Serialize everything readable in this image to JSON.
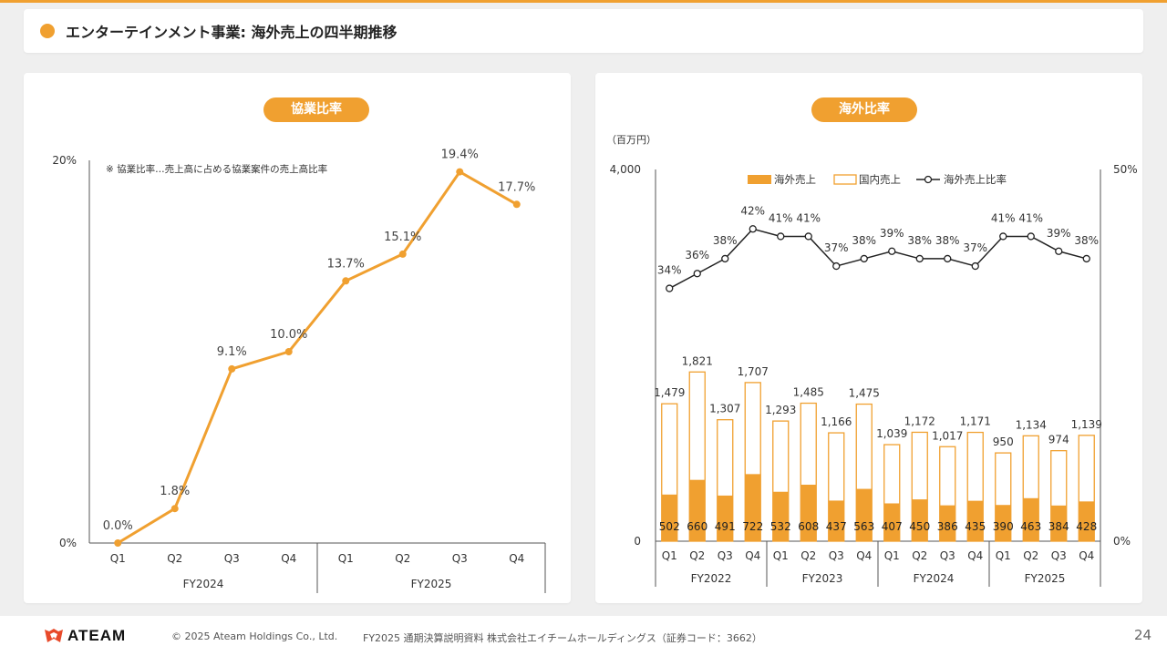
{
  "header": {
    "title": "エンターテインメント事業: 海外売上の四半期推移"
  },
  "left_panel": {
    "pill": "協業比率",
    "note": "※ 協業比率…売上高に占める協業案件の売上高比率"
  },
  "right_panel": {
    "pill": "海外比率",
    "unit": "（百万円）",
    "legend": {
      "overseas": "海外売上",
      "domestic": "国内売上",
      "ratio": "海外売上比率"
    }
  },
  "footer": {
    "logo": "ATEAM",
    "copyright": "© 2025 Ateam Holdings Co., Ltd.",
    "document": "FY2025 通期決算説明資料 株式会社エイチームホールディングス（証券コード：3662）",
    "page": "24"
  },
  "colors": {
    "accent": "#f0a030",
    "line": "#222222"
  },
  "chart_data": [
    {
      "type": "line",
      "title": "協業比率",
      "categories": [
        "Q1",
        "Q2",
        "Q3",
        "Q4",
        "Q1",
        "Q2",
        "Q3",
        "Q4"
      ],
      "groups": [
        {
          "name": "FY2024",
          "span": 4
        },
        {
          "name": "FY2025",
          "span": 4
        }
      ],
      "values": [
        0.0,
        1.8,
        9.1,
        10.0,
        13.7,
        15.1,
        19.4,
        17.7
      ],
      "labels": [
        "0.0%",
        "1.8%",
        "9.1%",
        "10.0%",
        "13.7%",
        "15.1%",
        "19.4%",
        "17.7%"
      ],
      "y_ticks": [
        "0%",
        "20%"
      ],
      "ylim": [
        0,
        20
      ],
      "grid": false
    },
    {
      "type": "bar",
      "stacked": true,
      "title": "海外比率",
      "categories": [
        "Q1",
        "Q2",
        "Q3",
        "Q4",
        "Q1",
        "Q2",
        "Q3",
        "Q4",
        "Q1",
        "Q2",
        "Q3",
        "Q4",
        "Q1",
        "Q2",
        "Q3",
        "Q4"
      ],
      "groups": [
        {
          "name": "FY2022",
          "span": 4
        },
        {
          "name": "FY2023",
          "span": 4
        },
        {
          "name": "FY2024",
          "span": 4
        },
        {
          "name": "FY2025",
          "span": 4
        }
      ],
      "overseas": [
        502,
        660,
        491,
        722,
        532,
        608,
        437,
        563,
        407,
        450,
        386,
        435,
        390,
        463,
        384,
        428
      ],
      "totals": [
        1479,
        1821,
        1307,
        1707,
        1293,
        1485,
        1166,
        1475,
        1039,
        1172,
        1017,
        1171,
        950,
        1134,
        974,
        1139
      ],
      "total_labels": [
        "1,479",
        "1,821",
        "1,307",
        "1,707",
        "1,293",
        "1,485",
        "1,166",
        "1,475",
        "1,039",
        "1,172",
        "1,017",
        "1,171",
        "950",
        "1,134",
        "974",
        "1,139"
      ],
      "overseas_labels": [
        "502",
        "660",
        "491",
        "722",
        "532",
        "608",
        "437",
        "563",
        "407",
        "450",
        "386",
        "435",
        "390",
        "463",
        "384",
        "428"
      ],
      "ratio": [
        34,
        36,
        38,
        42,
        41,
        41,
        37,
        38,
        39,
        38,
        38,
        37,
        41,
        41,
        39,
        38
      ],
      "ratio_labels": [
        "34%",
        "36%",
        "38%",
        "42%",
        "41%",
        "41%",
        "37%",
        "38%",
        "39%",
        "38%",
        "38%",
        "37%",
        "41%",
        "41%",
        "39%",
        "38%"
      ],
      "y_left_ticks": [
        "0",
        "4,000"
      ],
      "y_left_lim": [
        0,
        4000
      ],
      "y_right_ticks": [
        "0%",
        "50%"
      ],
      "y_right_lim": [
        0,
        50
      ],
      "legend_position": "top"
    }
  ]
}
